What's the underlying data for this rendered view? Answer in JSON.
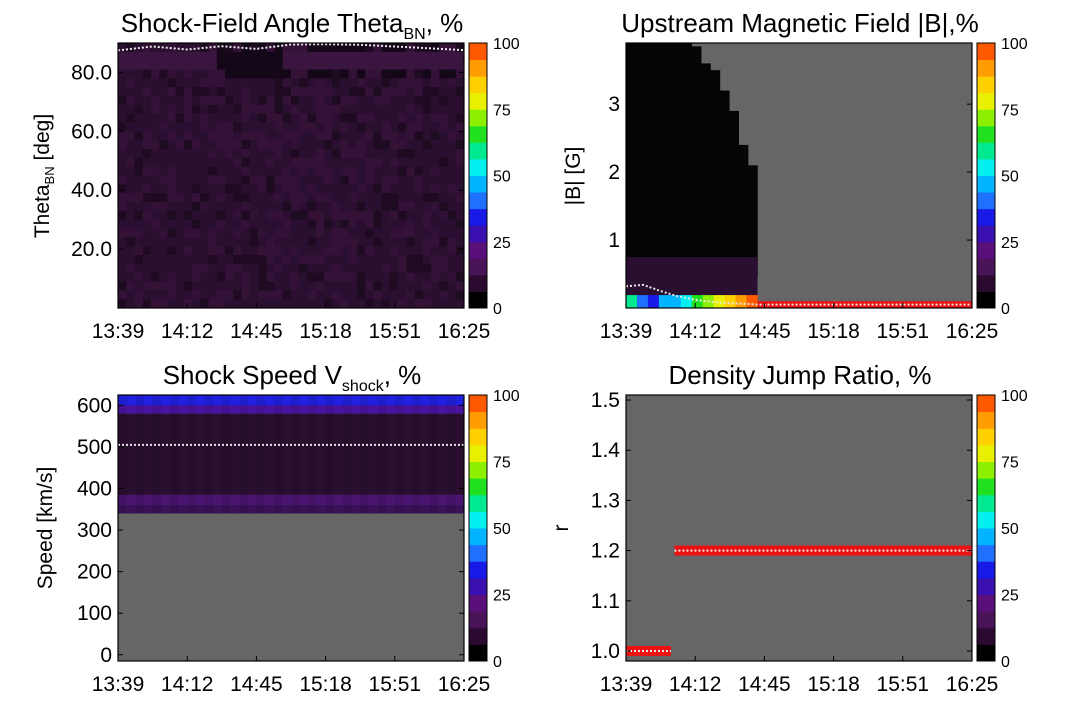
{
  "time_ticks": [
    "13:39",
    "14:12",
    "14:45",
    "15:18",
    "15:51",
    "16:25"
  ],
  "colorbar": {
    "ticks": [
      0,
      25,
      50,
      75,
      100
    ],
    "colors": [
      "#000000",
      "#2a0a2e",
      "#4a1458",
      "#5a0f7a",
      "#3a10b0",
      "#1a1ae8",
      "#2070ff",
      "#00b4ff",
      "#00f0f0",
      "#00e890",
      "#20e020",
      "#8cf000",
      "#e8f000",
      "#ffd000",
      "#ff9c00",
      "#ff5a00"
    ]
  },
  "colors": {
    "no_data": "#666666",
    "median_line": "#e8e8e8",
    "high_band": "#ee1111"
  },
  "chart_data": [
    {
      "id": "theta",
      "type": "heatmap",
      "title": "Shock-Field Angle Theta",
      "title_sub": "BN",
      "title_suffix": ", %",
      "ylabel": "Theta",
      "ylabel_sub": "BN",
      "ylabel_suffix": " [deg]",
      "ylim": [
        0,
        90
      ],
      "yticks": [
        20.0,
        40.0,
        60.0,
        80.0
      ],
      "ytick_labels": [
        "20.0",
        "40.0",
        "60.0",
        "80.0"
      ],
      "median_line": {
        "x": [
          0,
          0.1,
          0.2,
          0.3,
          0.4,
          0.5,
          0.6,
          0.7,
          0.8,
          0.9,
          1.0
        ],
        "y": [
          87.5,
          88.8,
          87.8,
          88.9,
          88.0,
          89.5,
          89.6,
          89.4,
          88.8,
          88.2,
          87.6
        ]
      }
    },
    {
      "id": "bfield",
      "type": "heatmap",
      "title": "Upstream Magnetic Field |B|,%",
      "ylabel": "|B| [G]",
      "ylim": [
        0,
        3.9
      ],
      "yticks": [
        1,
        2,
        3
      ],
      "ytick_labels": [
        "1",
        "2",
        "3"
      ],
      "median_line": {
        "x": [
          0,
          0.05,
          0.1,
          0.15,
          0.2,
          0.25,
          0.3,
          0.35,
          0.38,
          1.0
        ],
        "y": [
          0.32,
          0.34,
          0.25,
          0.17,
          0.12,
          0.09,
          0.07,
          0.06,
          0.05,
          0.05
        ]
      }
    },
    {
      "id": "speed",
      "type": "heatmap",
      "title": "Shock Speed V",
      "title_sub": "shock",
      "title_suffix": ", %",
      "ylabel": "Speed [km/s]",
      "ylim": [
        -15,
        625
      ],
      "yticks": [
        0,
        100,
        200,
        300,
        400,
        500,
        600
      ],
      "ytick_labels": [
        "0",
        "100",
        "200",
        "300",
        "400",
        "500",
        "600"
      ],
      "data_min_y": 340,
      "median_line": {
        "x": [
          0,
          1.0
        ],
        "y": [
          505,
          505
        ]
      }
    },
    {
      "id": "ratio",
      "type": "heatmap",
      "title": "Density Jump Ratio, %",
      "ylabel": "r",
      "ylim": [
        0.98,
        1.51
      ],
      "yticks": [
        1.0,
        1.1,
        1.2,
        1.3,
        1.4,
        1.5
      ],
      "ytick_labels": [
        "1.0",
        "1.1",
        "1.2",
        "1.3",
        "1.4",
        "1.5"
      ],
      "segments": [
        {
          "x0": 0.0,
          "x1": 0.13,
          "y": 1.0
        },
        {
          "x0": 0.14,
          "x1": 1.0,
          "y": 1.2
        }
      ]
    }
  ]
}
